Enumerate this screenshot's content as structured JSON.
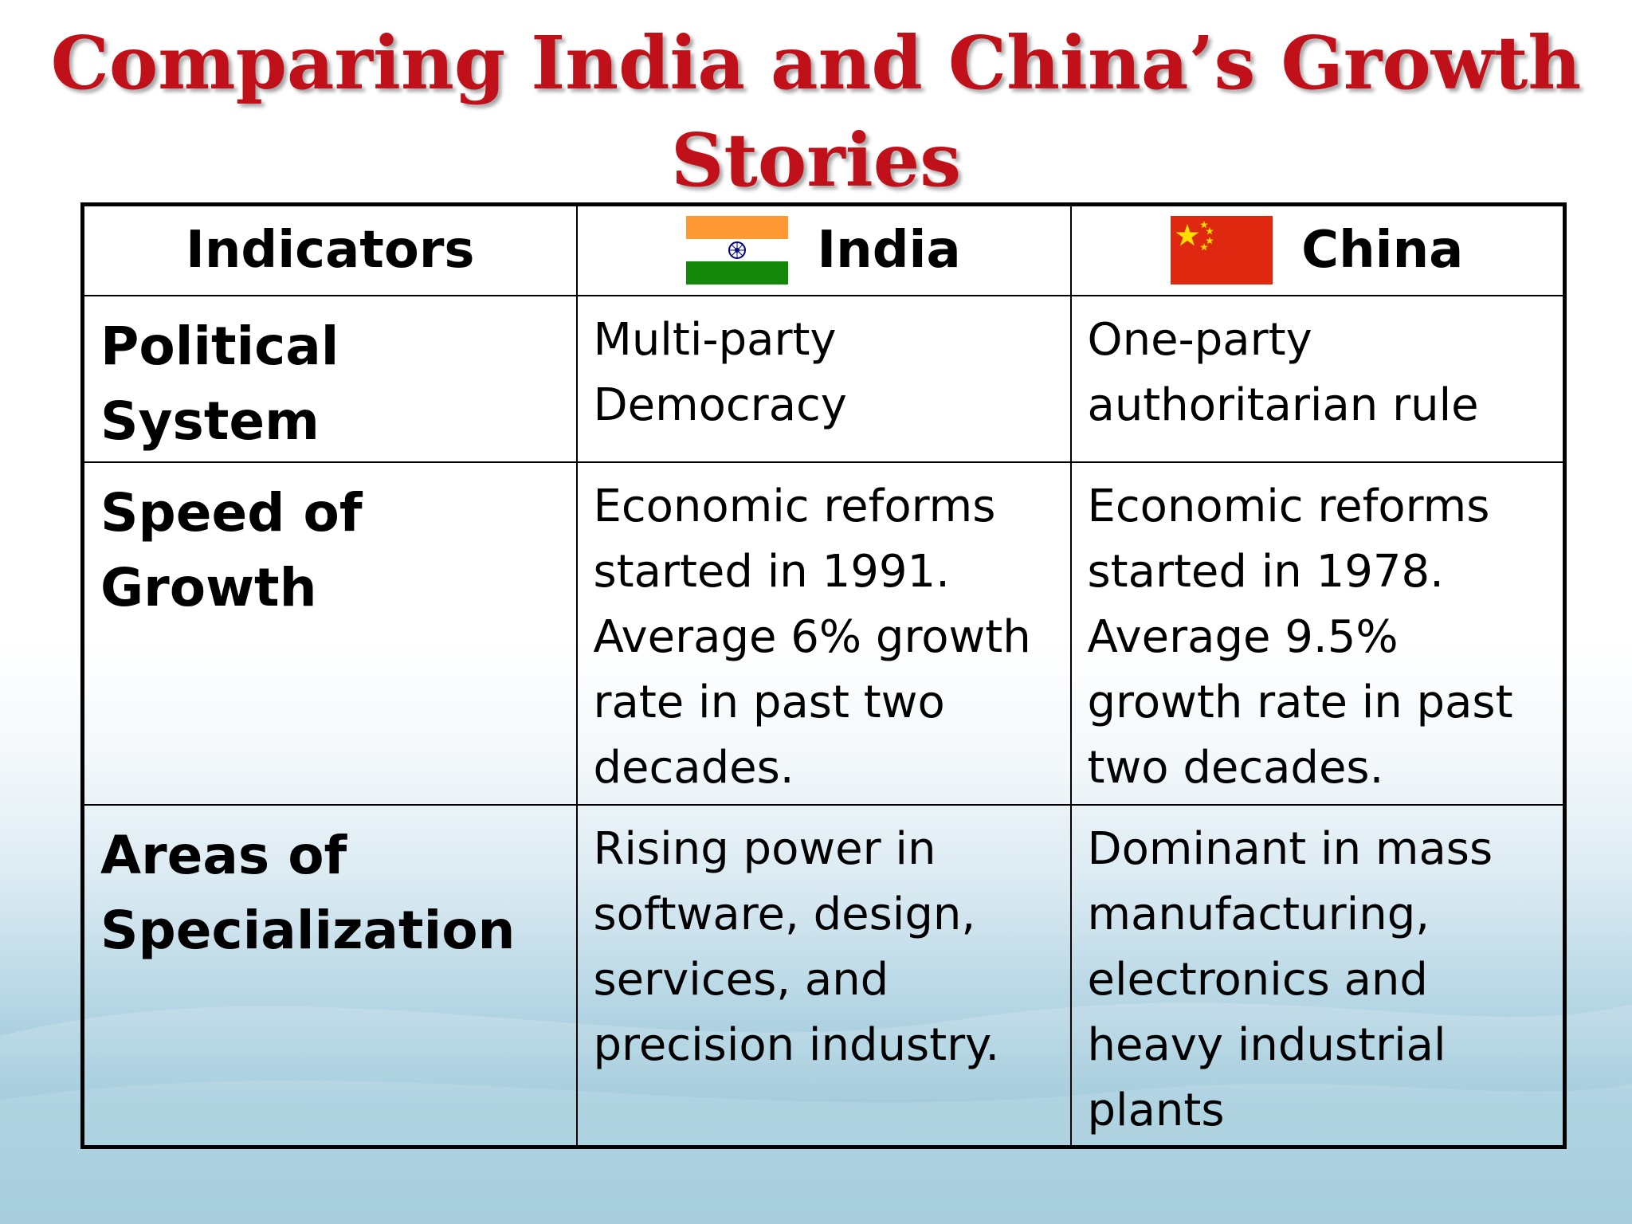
{
  "title": "Comparing India and China’s Growth Stories",
  "table": {
    "headers": {
      "indicators": "Indicators",
      "india": "India",
      "china": "China"
    },
    "rows": [
      {
        "indicator": "Political System",
        "india": "Multi-party\nDemocracy",
        "china": "One-party\nauthoritarian rule"
      },
      {
        "indicator": "Speed of\nGrowth",
        "india": "Economic reforms\nstarted in 1991.\nAverage 6% growth\nrate in past two\ndecades.",
        "china": "Economic reforms\nstarted in 1978.\nAverage 9.5%\ngrowth rate in past\ntwo decades."
      },
      {
        "indicator": "Areas of\nSpecialization",
        "india": "Rising power in\nsoftware, design,\nservices, and\nprecision industry.",
        "china": "Dominant in mass\nmanufacturing,\nelectronics and\nheavy industrial\nplants"
      }
    ]
  },
  "colors": {
    "title": "#c0111a",
    "india_saffron": "#ff9933",
    "india_green": "#138808",
    "india_chakra": "#000080",
    "china_red": "#de2910",
    "china_star": "#ffde00"
  },
  "icons": {
    "india_flag": "india-flag-icon",
    "china_flag": "china-flag-icon"
  }
}
